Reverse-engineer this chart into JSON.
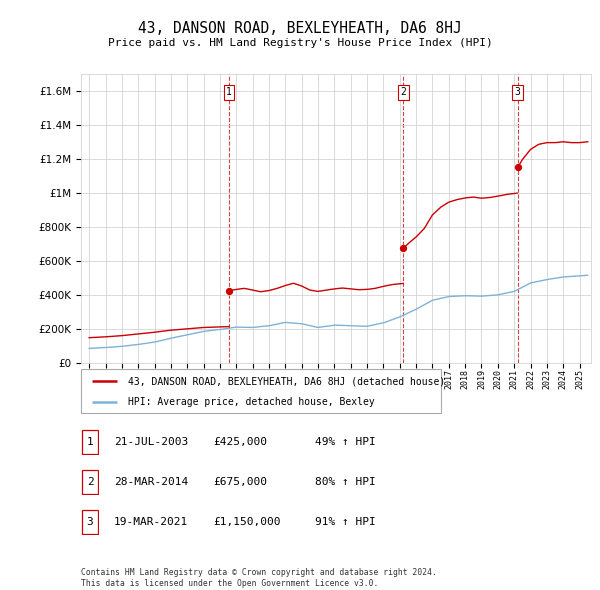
{
  "title": "43, DANSON ROAD, BEXLEYHEATH, DA6 8HJ",
  "subtitle": "Price paid vs. HM Land Registry's House Price Index (HPI)",
  "sale_prices": [
    425000,
    675000,
    1150000
  ],
  "sale_labels": [
    "1",
    "2",
    "3"
  ],
  "sale_table": [
    [
      "1",
      "21-JUL-2003",
      "£425,000",
      "49% ↑ HPI"
    ],
    [
      "2",
      "28-MAR-2014",
      "£675,000",
      "80% ↑ HPI"
    ],
    [
      "3",
      "19-MAR-2021",
      "£1,150,000",
      "91% ↑ HPI"
    ]
  ],
  "legend_line1": "43, DANSON ROAD, BEXLEYHEATH, DA6 8HJ (detached house)",
  "legend_line2": "HPI: Average price, detached house, Bexley",
  "footer1": "Contains HM Land Registry data © Crown copyright and database right 2024.",
  "footer2": "This data is licensed under the Open Government Licence v3.0.",
  "line_color_red": "#cc0000",
  "line_color_blue": "#7fb2d8",
  "vline_color": "#cc0000",
  "ylim": [
    0,
    1700000
  ],
  "yticks": [
    0,
    200000,
    400000,
    600000,
    800000,
    1000000,
    1200000,
    1400000,
    1600000
  ],
  "xlim_start": 1994.5,
  "xlim_end": 2025.7,
  "background_color": "#ffffff",
  "grid_color": "#cccccc",
  "sale_years": [
    2003.554,
    2014.228,
    2021.214
  ],
  "hpi_anchors": [
    [
      1995.0,
      85000
    ],
    [
      1996.0,
      90000
    ],
    [
      1997.0,
      97000
    ],
    [
      1998.0,
      108000
    ],
    [
      1999.0,
      122000
    ],
    [
      2000.0,
      145000
    ],
    [
      2001.0,
      165000
    ],
    [
      2002.0,
      185000
    ],
    [
      2003.0,
      196000
    ],
    [
      2004.0,
      210000
    ],
    [
      2005.0,
      208000
    ],
    [
      2006.0,
      218000
    ],
    [
      2007.0,
      238000
    ],
    [
      2008.0,
      230000
    ],
    [
      2009.0,
      208000
    ],
    [
      2010.0,
      222000
    ],
    [
      2011.0,
      218000
    ],
    [
      2012.0,
      215000
    ],
    [
      2013.0,
      235000
    ],
    [
      2014.0,
      270000
    ],
    [
      2015.0,
      315000
    ],
    [
      2016.0,
      368000
    ],
    [
      2017.0,
      390000
    ],
    [
      2018.0,
      395000
    ],
    [
      2019.0,
      392000
    ],
    [
      2020.0,
      400000
    ],
    [
      2021.0,
      420000
    ],
    [
      2022.0,
      470000
    ],
    [
      2023.0,
      490000
    ],
    [
      2024.0,
      505000
    ],
    [
      2025.5,
      515000
    ]
  ],
  "red_anchors_pre1": [
    [
      1995.0,
      148000
    ],
    [
      1996.0,
      153000
    ],
    [
      1997.0,
      160000
    ],
    [
      1998.0,
      170000
    ],
    [
      1999.0,
      180000
    ],
    [
      2000.0,
      192000
    ],
    [
      2001.0,
      200000
    ],
    [
      2002.0,
      208000
    ],
    [
      2003.5,
      213000
    ]
  ],
  "red_anchors_post1": [
    [
      2003.56,
      425000
    ],
    [
      2004.0,
      432000
    ],
    [
      2004.5,
      438000
    ],
    [
      2005.0,
      428000
    ],
    [
      2005.5,
      418000
    ],
    [
      2006.0,
      425000
    ],
    [
      2006.5,
      438000
    ],
    [
      2007.0,
      455000
    ],
    [
      2007.5,
      468000
    ],
    [
      2008.0,
      452000
    ],
    [
      2008.5,
      428000
    ],
    [
      2009.0,
      420000
    ],
    [
      2009.5,
      428000
    ],
    [
      2010.0,
      435000
    ],
    [
      2010.5,
      440000
    ],
    [
      2011.0,
      435000
    ],
    [
      2011.5,
      430000
    ],
    [
      2012.0,
      432000
    ],
    [
      2012.5,
      438000
    ],
    [
      2013.0,
      450000
    ],
    [
      2013.5,
      460000
    ],
    [
      2014.2,
      467000
    ]
  ],
  "red_anchors_post2": [
    [
      2014.23,
      675000
    ],
    [
      2014.5,
      700000
    ],
    [
      2015.0,
      740000
    ],
    [
      2015.5,
      790000
    ],
    [
      2016.0,
      870000
    ],
    [
      2016.5,
      915000
    ],
    [
      2017.0,
      945000
    ],
    [
      2017.5,
      960000
    ],
    [
      2018.0,
      970000
    ],
    [
      2018.5,
      975000
    ],
    [
      2019.0,
      968000
    ],
    [
      2019.5,
      972000
    ],
    [
      2020.0,
      980000
    ],
    [
      2020.5,
      990000
    ],
    [
      2021.18,
      998000
    ]
  ],
  "red_anchors_post3": [
    [
      2021.22,
      1150000
    ],
    [
      2021.5,
      1195000
    ],
    [
      2022.0,
      1255000
    ],
    [
      2022.5,
      1285000
    ],
    [
      2023.0,
      1295000
    ],
    [
      2023.5,
      1295000
    ],
    [
      2024.0,
      1300000
    ],
    [
      2024.5,
      1295000
    ],
    [
      2025.0,
      1295000
    ],
    [
      2025.5,
      1300000
    ]
  ]
}
